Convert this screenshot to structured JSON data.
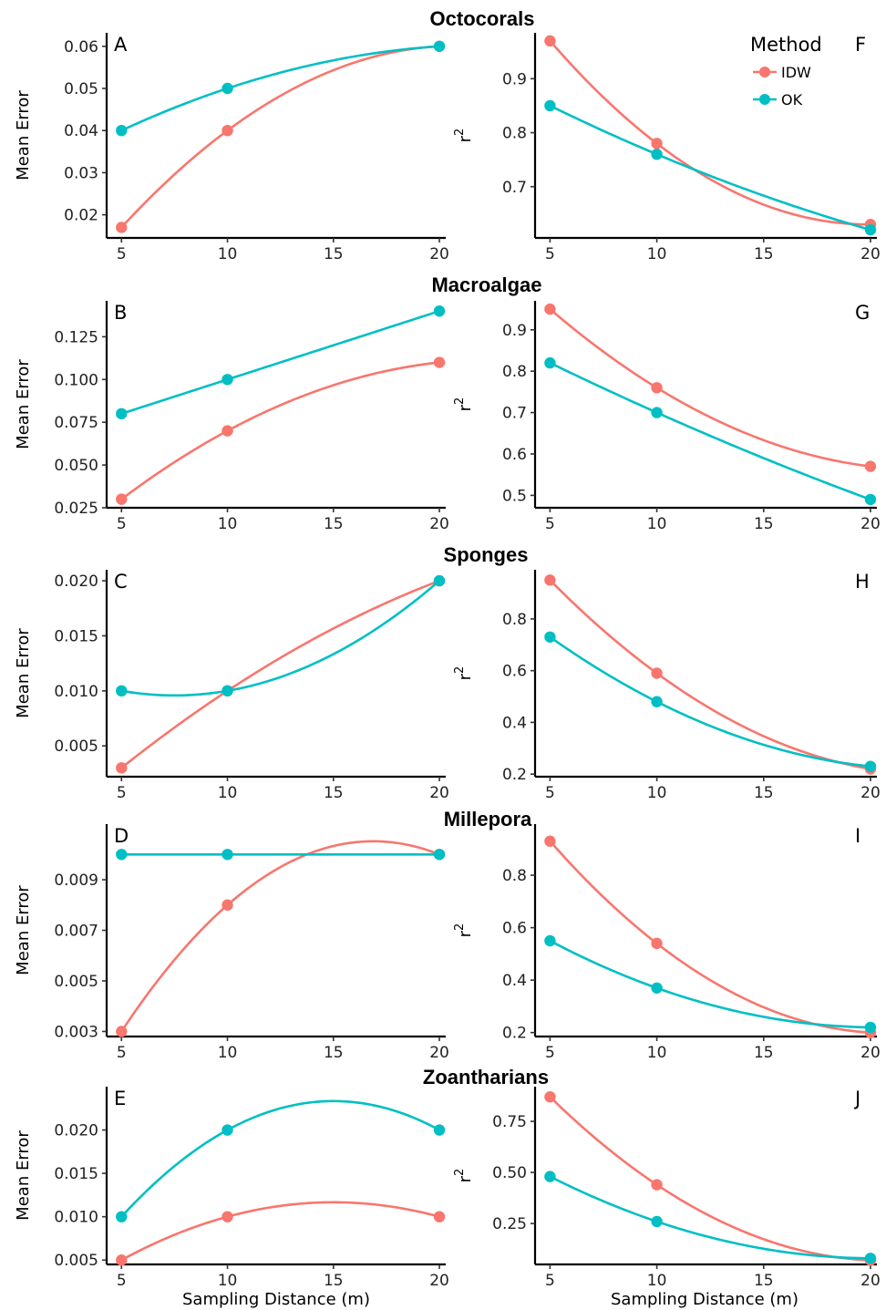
{
  "colors": {
    "IDW": "#F8766D",
    "OK": "#00BFC4",
    "axis": "#000000"
  },
  "legend": {
    "title": "Method",
    "items": [
      {
        "name": "IDW",
        "color": "#F8766D"
      },
      {
        "name": "OK",
        "color": "#00BFC4"
      }
    ]
  },
  "rows": [
    {
      "title": "Octocorals"
    },
    {
      "title": "Macroalgae"
    },
    {
      "title": "Sponges"
    },
    {
      "title": "Millepora"
    },
    {
      "title": "Zoantharians"
    }
  ],
  "xlabel": "Sampling Distance (m)",
  "chart_data": [
    {
      "panel": "A",
      "group": "Octocorals",
      "type": "line",
      "ylabel": "Mean Error",
      "xlabel": "",
      "x": [
        5,
        10,
        20
      ],
      "xticks": [
        5,
        10,
        15,
        20
      ],
      "xlim": [
        4.3,
        20.3
      ],
      "yticks": [
        0.02,
        0.03,
        0.04,
        0.05,
        0.06
      ],
      "ytick_labels": [
        "0.02",
        "0.03",
        "0.04",
        "0.05",
        "0.06"
      ],
      "ylim": [
        0.0145,
        0.0632
      ],
      "series": [
        {
          "name": "IDW",
          "values": [
            0.017,
            0.04,
            0.06
          ]
        },
        {
          "name": "OK",
          "values": [
            0.04,
            0.05,
            0.06
          ]
        }
      ]
    },
    {
      "panel": "F",
      "group": "Octocorals",
      "type": "line",
      "ylabel": "r2",
      "xlabel": "",
      "x": [
        5,
        10,
        20
      ],
      "xticks": [
        5,
        10,
        15,
        20
      ],
      "xlim": [
        4.3,
        20.3
      ],
      "yticks": [
        0.7,
        0.8,
        0.9
      ],
      "ytick_labels": [
        "0.7",
        "0.8",
        "0.9"
      ],
      "ylim": [
        0.605,
        0.985
      ],
      "series": [
        {
          "name": "IDW",
          "values": [
            0.97,
            0.78,
            0.63
          ]
        },
        {
          "name": "OK",
          "values": [
            0.85,
            0.76,
            0.62
          ]
        }
      ]
    },
    {
      "panel": "B",
      "group": "Macroalgae",
      "type": "line",
      "ylabel": "Mean Error",
      "xlabel": "",
      "x": [
        5,
        10,
        20
      ],
      "xticks": [
        5,
        10,
        15,
        20
      ],
      "xlim": [
        4.3,
        20.3
      ],
      "yticks": [
        0.025,
        0.05,
        0.075,
        0.1,
        0.125
      ],
      "ytick_labels": [
        "0.025",
        "0.050",
        "0.075",
        "0.100",
        "0.125"
      ],
      "ylim": [
        0.025,
        0.146
      ],
      "series": [
        {
          "name": "IDW",
          "values": [
            0.03,
            0.07,
            0.11
          ]
        },
        {
          "name": "OK",
          "values": [
            0.08,
            0.1,
            0.14
          ]
        }
      ]
    },
    {
      "panel": "G",
      "group": "Macroalgae",
      "type": "line",
      "ylabel": "r2",
      "xlabel": "",
      "x": [
        5,
        10,
        20
      ],
      "xticks": [
        5,
        10,
        15,
        20
      ],
      "xlim": [
        4.3,
        20.3
      ],
      "yticks": [
        0.5,
        0.6,
        0.7,
        0.8,
        0.9
      ],
      "ytick_labels": [
        "0.5",
        "0.6",
        "0.7",
        "0.8",
        "0.9"
      ],
      "ylim": [
        0.47,
        0.97
      ],
      "series": [
        {
          "name": "IDW",
          "values": [
            0.95,
            0.76,
            0.57
          ]
        },
        {
          "name": "OK",
          "values": [
            0.82,
            0.7,
            0.49
          ]
        }
      ]
    },
    {
      "panel": "C",
      "group": "Sponges",
      "type": "line",
      "ylabel": "Mean Error",
      "xlabel": "",
      "x": [
        5,
        10,
        20
      ],
      "xticks": [
        5,
        10,
        15,
        20
      ],
      "xlim": [
        4.3,
        20.3
      ],
      "yticks": [
        0.005,
        0.01,
        0.015,
        0.02
      ],
      "ytick_labels": [
        "0.005",
        "0.010",
        "0.015",
        "0.020"
      ],
      "ylim": [
        0.0022,
        0.021
      ],
      "series": [
        {
          "name": "IDW",
          "values": [
            0.003,
            0.01,
            0.02
          ]
        },
        {
          "name": "OK",
          "values": [
            0.01,
            0.01,
            0.02
          ]
        }
      ]
    },
    {
      "panel": "H",
      "group": "Sponges",
      "type": "line",
      "ylabel": "r2",
      "xlabel": "",
      "x": [
        5,
        10,
        20
      ],
      "xticks": [
        5,
        10,
        15,
        20
      ],
      "xlim": [
        4.3,
        20.3
      ],
      "yticks": [
        0.2,
        0.4,
        0.6,
        0.8
      ],
      "ytick_labels": [
        "0.2",
        "0.4",
        "0.6",
        "0.8"
      ],
      "ylim": [
        0.19,
        0.99
      ],
      "series": [
        {
          "name": "IDW",
          "values": [
            0.95,
            0.59,
            0.22
          ]
        },
        {
          "name": "OK",
          "values": [
            0.73,
            0.48,
            0.23
          ]
        }
      ]
    },
    {
      "panel": "D",
      "group": "Millepora",
      "type": "line",
      "ylabel": "Mean Error",
      "xlabel": "",
      "x": [
        5,
        10,
        20
      ],
      "xticks": [
        5,
        10,
        15,
        20
      ],
      "xlim": [
        4.3,
        20.3
      ],
      "yticks": [
        0.003,
        0.005,
        0.007,
        0.009
      ],
      "ytick_labels": [
        "0.003",
        "0.005",
        "0.007",
        "0.009"
      ],
      "ylim": [
        0.0028,
        0.0112
      ],
      "series": [
        {
          "name": "IDW",
          "values": [
            0.003,
            0.008,
            0.01
          ]
        },
        {
          "name": "OK",
          "values": [
            0.01,
            0.01,
            0.01
          ]
        }
      ]
    },
    {
      "panel": "I",
      "group": "Millepora",
      "type": "line",
      "ylabel": "r2",
      "xlabel": "",
      "x": [
        5,
        10,
        20
      ],
      "xticks": [
        5,
        10,
        15,
        20
      ],
      "xlim": [
        4.3,
        20.3
      ],
      "yticks": [
        0.2,
        0.4,
        0.6,
        0.8
      ],
      "ytick_labels": [
        "0.2",
        "0.4",
        "0.6",
        "0.8"
      ],
      "ylim": [
        0.185,
        0.995
      ],
      "series": [
        {
          "name": "IDW",
          "values": [
            0.93,
            0.54,
            0.2
          ]
        },
        {
          "name": "OK",
          "values": [
            0.55,
            0.37,
            0.22
          ]
        }
      ]
    },
    {
      "panel": "E",
      "group": "Zoantharians",
      "type": "line",
      "ylabel": "Mean Error",
      "xlabel": "Sampling Distance (m)",
      "x": [
        5,
        10,
        20
      ],
      "xticks": [
        5,
        10,
        15,
        20
      ],
      "xlim": [
        4.3,
        20.3
      ],
      "yticks": [
        0.005,
        0.01,
        0.015,
        0.02
      ],
      "ytick_labels": [
        "0.005",
        "0.010",
        "0.015",
        "0.020"
      ],
      "ylim": [
        0.0045,
        0.025
      ],
      "series": [
        {
          "name": "IDW",
          "values": [
            0.005,
            0.01,
            0.01
          ]
        },
        {
          "name": "OK",
          "values": [
            0.01,
            0.02,
            0.02
          ]
        }
      ]
    },
    {
      "panel": "J",
      "group": "Zoantharians",
      "type": "line",
      "ylabel": "r2",
      "xlabel": "Sampling Distance (m)",
      "x": [
        5,
        10,
        20
      ],
      "xticks": [
        5,
        10,
        15,
        20
      ],
      "xlim": [
        4.3,
        20.3
      ],
      "yticks": [
        0.25,
        0.5,
        0.75
      ],
      "ytick_labels": [
        "0.25",
        "0.50",
        "0.75"
      ],
      "ylim": [
        0.05,
        0.92
      ],
      "series": [
        {
          "name": "IDW",
          "values": [
            0.87,
            0.44,
            0.07
          ]
        },
        {
          "name": "OK",
          "values": [
            0.48,
            0.26,
            0.08
          ]
        }
      ]
    }
  ]
}
